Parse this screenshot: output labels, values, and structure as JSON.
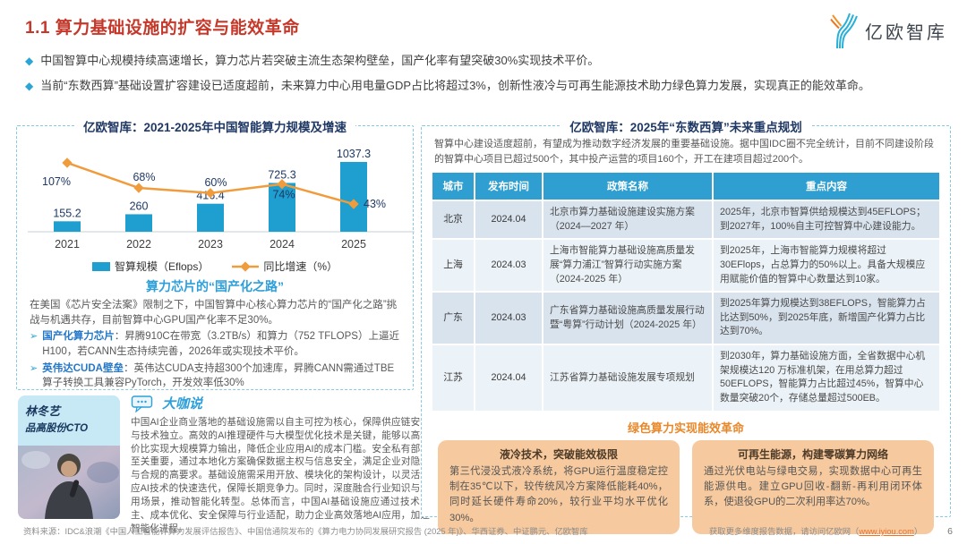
{
  "header": {
    "title": "1.1 算力基础设施的扩容与能效革命",
    "logo_text": "亿欧智库"
  },
  "bullets": [
    "中国智算中心规模持续高速增长，算力芯片若突破主流生态架构壁垒，国产化率有望突破30%实现技术平价。",
    "当前“东数西算”基础设置扩容建设已适度超前，未来算力中心用电量GDP占比将超过3%，创新性液冷与可再生能源技术助力绿色算力发展，实现真正的能效革命。"
  ],
  "chart_data": {
    "type": "bar",
    "title": "亿欧智库：2021-2025年中国智能算力规模及增速",
    "categories": [
      "2021",
      "2022",
      "2023",
      "2024",
      "2025"
    ],
    "series": [
      {
        "name": "智算规模（Eflops）",
        "type": "bar",
        "values": [
          155.2,
          260,
          416.4,
          725.3,
          1037.3
        ],
        "labels": [
          "155.2",
          "260",
          "416.4",
          "725.3",
          "1037.3"
        ],
        "color": "#1E9FCF"
      },
      {
        "name": "同比增速（%）",
        "type": "line",
        "values": [
          107,
          68,
          60,
          74,
          43
        ],
        "labels": [
          "107%",
          "68%",
          "60%",
          "74%",
          "43%"
        ],
        "color": "#F09C3C"
      }
    ],
    "legend_position": "bottom",
    "grid": false,
    "label_color": "#1F3864"
  },
  "chip_section": {
    "heading": "算力芯片的“国产化之路”",
    "intro": "在美国《芯片安全法案》限制之下，中国智算中心核心算力芯片的“国产化之路”挑战与机遇共存，目前智算中心GPU国产化率不足30%。",
    "points": [
      {
        "term": "国产化算力芯片",
        "text": "：昇腾910C在带宽（3.2TB/s）和算力（752 TFLOPS）上逼近H100，若CANN生态持续完善，2026年或实现技术平价。"
      },
      {
        "term": "英伟达CUDA壁垒",
        "text": "：英伟达CUDA支持超300个加速库，昇腾CANN需通过TBE算子转换工具兼容PyTorch，开发效率低30%"
      }
    ]
  },
  "expert": {
    "name": "林冬艺",
    "title": "品高股份CTO",
    "section_label": "大咖说",
    "quote": "中国AI企业商业落地的基础设施需以自主可控为核心，保障供应链安全与技术独立。高效的AI推理硬件与大模型优化技术是关键，能够以高性价比实现大规模算力输出，降低企业应用AI的成本门槛。安全私有部署至关重要，通过本地化方案确保数据主权与信息安全，满足企业对隐私与合规的高要求。基础设施需采用开放、模块化的架构设计，以灵活适应AI技术的快速迭代，保障长期竞争力。同时，深度融合行业知识与应用场景，推动智能化转型。总体而言，中国AI基础设施应通过技术自主、成本优化、安全保障与行业适配，助力企业高效落地AI应用，加速智能化进程。"
  },
  "plan_panel": {
    "title": "亿欧智库：2025年“东数西算”未来重点规划",
    "intro": "智算中心建设适度超前，有望成为推动数字经济发展的重要基础设施。据中国IDC圈不完全统计，目前不同建设阶段的智算中心项目已超过500个，其中投产运营的项目160个，开工在建项目超过200个。",
    "table": {
      "headers": [
        "城市",
        "发布时间",
        "政策名称",
        "重点内容"
      ],
      "rows": [
        [
          "北京",
          "2024.04",
          "北京市算力基础设施建设实施方案（2024—2027 年）",
          "2025年，北京市智算供给规模达到45EFLOPS；到2027年，100%自主可控智算中心建设能力。"
        ],
        [
          "上海",
          "2024.03",
          "上海市智能算力基础设施高质量发展“算力浦江”智算行动实施方案（2024-2025 年）",
          "到2025年，上海市智能算力规模将超过30EFlops，占总算力的50%以上。具备大规模应用赋能价值的智算中心数量达到10家。"
        ],
        [
          "广东",
          "2024.03",
          "广东省算力基础设施高质量发展行动暨“粤算”行动计划（2024-2025 年）",
          "到2025年算力规模达到38EFLOPS，智能算力占比达到50%，到2025年底，新增国产化算力占比达到70%。"
        ],
        [
          "江苏",
          "2024.04",
          "江苏省算力基础设施发展专项规划",
          "到2030年，算力基础设施方面，全省数据中心机架规模达120 万标准机架，在用总算力超过50EFLOPS，智能算力占比超过45%，智算中心数量突破20个，存储总量超过500EB。"
        ]
      ]
    }
  },
  "green_section": {
    "heading": "绿色算力实现能效革命",
    "boxes": [
      {
        "title": "液冷技术，突破能效极限",
        "text": "第三代浸没式液冷系统，将GPU运行温度稳定控制在35℃以下，较传统风冷方案降低能耗40%，同时延长硬件寿命20%，较行业平均水平优化30%。"
      },
      {
        "title": "可再生能源，构建零碳算力网络",
        "text": "通过光伏电站与绿电交易，实现数据中心可再生能源供电。建立GPU回收-翻新-再利用闭环体系，使退役GPU的二次利用率达70%。"
      }
    ]
  },
  "footer": {
    "source": "资料来源：IDC&浪潮《中国人工智能计算力发展评估报告》、中国信通院发布的《算力电力协同发展研究报告 (2025 年)》、华西证券、中证鹏元、亿欧智库",
    "more": "获取更多维度报告数据，请访问亿欧网（",
    "link": "www.iyiou.com",
    "more_end": "）",
    "page": "6"
  },
  "colors": {
    "title_red": "#C5392B",
    "accent_blue": "#2AA5D5",
    "bar_blue": "#1E9FCF",
    "line_orange": "#F09C3C",
    "table_header_blue": "#2E9FD0",
    "green_heading_orange": "#E8882B",
    "peach_box": "#F6C99E",
    "name_box_cyan": "#C7E8F5"
  }
}
